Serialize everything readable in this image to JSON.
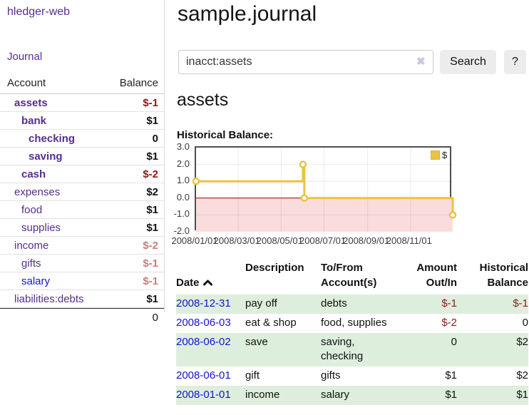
{
  "app": {
    "brand": "hledger-web"
  },
  "colors": {
    "link_purple": "#552e91",
    "link_blue": "#1414cc",
    "negative_strong": "#8b1a1a",
    "negative_faded": "#c48080",
    "row_shade_green": "#ddeedd",
    "series_gold": "#edc240",
    "negative_region_pink": "#fbdcdc",
    "zero_line_red": "#8b0000"
  },
  "sidebar": {
    "nav_journal": "Journal",
    "accounts": {
      "header_account": "Account",
      "header_balance": "Balance",
      "rows": [
        {
          "name": "assets",
          "balance": "$-1",
          "depth": 1,
          "bold": true,
          "color": "purple",
          "balance_class": "neg"
        },
        {
          "name": "bank",
          "balance": "$1",
          "depth": 2,
          "bold": true,
          "color": "purple",
          "balance_class": ""
        },
        {
          "name": "checking",
          "balance": "0",
          "depth": 3,
          "bold": true,
          "color": "purple",
          "balance_class": ""
        },
        {
          "name": "saving",
          "balance": "$1",
          "depth": 3,
          "bold": true,
          "color": "purple",
          "balance_class": ""
        },
        {
          "name": "cash",
          "balance": "$-2",
          "depth": 2,
          "bold": true,
          "color": "purple",
          "balance_class": "neg"
        },
        {
          "name": "expenses",
          "balance": "$2",
          "depth": 1,
          "bold": false,
          "color": "purple",
          "balance_class": ""
        },
        {
          "name": "food",
          "balance": "$1",
          "depth": 2,
          "bold": false,
          "color": "purple",
          "balance_class": ""
        },
        {
          "name": "supplies",
          "balance": "$1",
          "depth": 2,
          "bold": false,
          "color": "purple",
          "balance_class": ""
        },
        {
          "name": "income",
          "balance": "$-2",
          "depth": 1,
          "bold": false,
          "color": "purple",
          "balance_class": "negfade"
        },
        {
          "name": "gifts",
          "balance": "$-1",
          "depth": 2,
          "bold": false,
          "color": "purple",
          "balance_class": "negfade"
        },
        {
          "name": "salary",
          "balance": "$-1",
          "depth": 2,
          "bold": false,
          "color": "blue",
          "balance_class": "negfade"
        },
        {
          "name": "liabilities:debts",
          "balance": "$1",
          "depth": 1,
          "bold": false,
          "color": "purple",
          "balance_class": ""
        }
      ],
      "total": "0"
    }
  },
  "main": {
    "title": "sample.journal",
    "search": {
      "value": "inacct:assets",
      "clear_icon": "✖",
      "search_button": "Search",
      "help_button": "?"
    },
    "account_heading": "assets",
    "chart_heading": "Historical Balance:"
  },
  "chart_data": {
    "type": "line",
    "style": "step-after",
    "title": "Historical Balance",
    "legend": {
      "label": "$",
      "position": "top-right"
    },
    "series": [
      {
        "name": "$",
        "color": "#edc240",
        "points": [
          {
            "date": "2008-01-01",
            "day": 0,
            "value": 1
          },
          {
            "date": "2008-06-01",
            "day": 152,
            "value": 2
          },
          {
            "date": "2008-06-03",
            "day": 154,
            "value": 0
          },
          {
            "date": "2008-12-31",
            "day": 365,
            "value": -1
          }
        ]
      }
    ],
    "x_ticks": [
      {
        "label": "2008/01/01",
        "day": 0
      },
      {
        "label": "2008/03/01",
        "day": 60
      },
      {
        "label": "2008/05/01",
        "day": 121
      },
      {
        "label": "2008/07/01",
        "day": 182
      },
      {
        "label": "2008/09/01",
        "day": 244
      },
      {
        "label": "2008/11/01",
        "day": 305
      }
    ],
    "y_ticks": [
      {
        "label": "3.0",
        "value": 3
      },
      {
        "label": "2.0",
        "value": 2
      },
      {
        "label": "1.0",
        "value": 1
      },
      {
        "label": "0.0",
        "value": 0
      },
      {
        "label": "-1.0",
        "value": -1
      },
      {
        "label": "-2.0",
        "value": -2
      }
    ],
    "ylim": [
      -2,
      3
    ],
    "x_max_day": 365,
    "grid": true,
    "negative_region_shaded": true
  },
  "register": {
    "headers": {
      "date": "Date",
      "description": "Description",
      "accounts": "To/From\nAccount(s)",
      "amount": "Amount\nOut/In",
      "balance": "Historical\nBalance"
    },
    "rows": [
      {
        "date": "2008-12-31",
        "description": "pay off",
        "accounts": "debts",
        "amount": "$-1",
        "amount_neg": true,
        "balance": "$-1",
        "balance_neg": true,
        "shade": true
      },
      {
        "date": "2008-06-03",
        "description": "eat & shop",
        "accounts": "food, supplies",
        "amount": "$-2",
        "amount_neg": true,
        "balance": "0",
        "balance_neg": false,
        "shade": false
      },
      {
        "date": "2008-06-02",
        "description": "save",
        "accounts": "saving,\nchecking",
        "amount": "0",
        "amount_neg": false,
        "balance": "$2",
        "balance_neg": false,
        "shade": true
      },
      {
        "date": "2008-06-01",
        "description": "gift",
        "accounts": "gifts",
        "amount": "$1",
        "amount_neg": false,
        "balance": "$2",
        "balance_neg": false,
        "shade": false
      },
      {
        "date": "2008-01-01",
        "description": "income",
        "accounts": "salary",
        "amount": "$1",
        "amount_neg": false,
        "balance": "$1",
        "balance_neg": false,
        "shade": true
      }
    ]
  }
}
